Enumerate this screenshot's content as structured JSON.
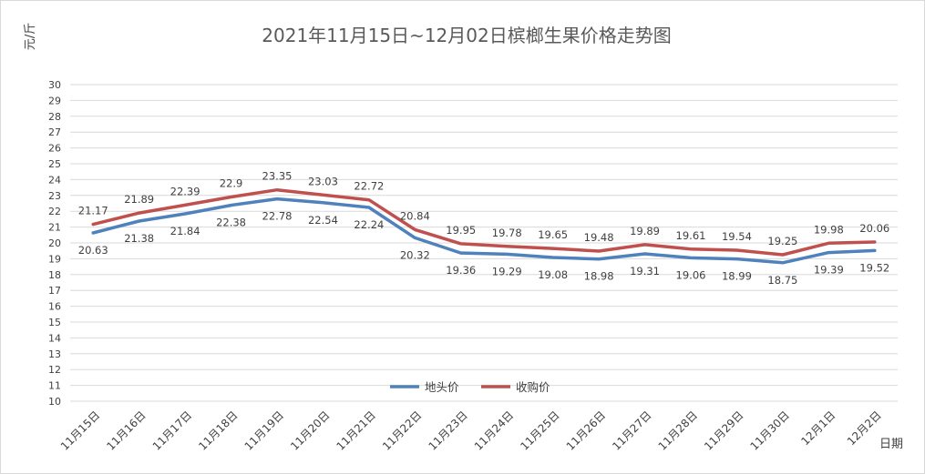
{
  "chart_data": {
    "type": "line",
    "title": "2021年11月15日~12月02日槟榔生果价格走势图",
    "ylabel": "元/斤",
    "xlabel": "日期",
    "ylim": [
      10,
      30
    ],
    "ytick_step": 1,
    "grid": true,
    "legend_position": "center",
    "categories": [
      "11月15日",
      "11月16日",
      "11月17日",
      "11月18日",
      "11月19日",
      "11月20日",
      "11月21日",
      "11月22日",
      "11月23日",
      "11月24日",
      "11月25日",
      "11月26日",
      "11月27日",
      "11月28日",
      "11月29日",
      "11月30日",
      "12月1日",
      "12月2日"
    ],
    "series": [
      {
        "name": "地头价",
        "color": "#4f81bd",
        "values": [
          20.63,
          21.38,
          21.84,
          22.38,
          22.78,
          22.54,
          22.24,
          20.32,
          19.36,
          19.29,
          19.08,
          18.98,
          19.31,
          19.06,
          18.99,
          18.75,
          19.39,
          19.52
        ],
        "label_position": "below"
      },
      {
        "name": "收购价",
        "color": "#c0504d",
        "values": [
          21.17,
          21.89,
          22.39,
          22.9,
          23.35,
          23.03,
          22.72,
          20.84,
          19.95,
          19.78,
          19.65,
          19.48,
          19.89,
          19.61,
          19.54,
          19.25,
          19.98,
          20.06
        ],
        "label_position": "above"
      }
    ]
  }
}
